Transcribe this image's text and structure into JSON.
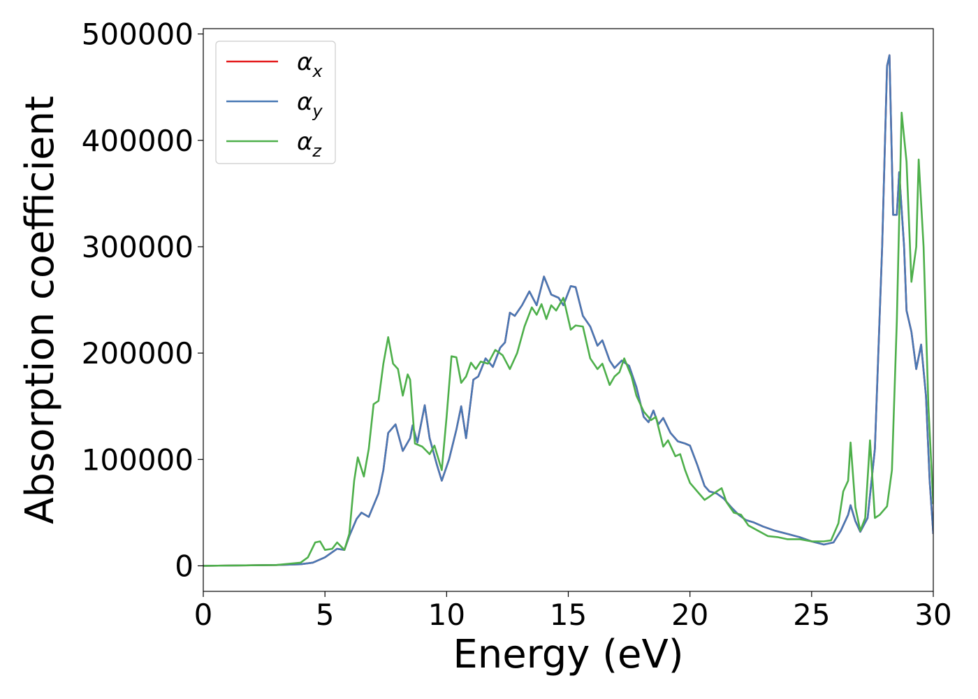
{
  "chart_data": {
    "type": "line",
    "title": "",
    "xlabel": "Energy (eV)",
    "ylabel": "Absorption coefficient",
    "xlim": [
      0,
      30
    ],
    "ylim": [
      -24000,
      505000
    ],
    "xticks": [
      0,
      5,
      10,
      15,
      20,
      25,
      30
    ],
    "yticks": [
      0,
      100000,
      200000,
      300000,
      400000,
      500000
    ],
    "grid": false,
    "legend_position": "top-left",
    "series": [
      {
        "name": "αx",
        "symbol": "α",
        "subscript": "x",
        "color": "#e41a1c",
        "points": [
          [
            0,
            0
          ],
          [
            3,
            800
          ],
          [
            4,
            1500
          ],
          [
            4.5,
            3000
          ],
          [
            5,
            8000
          ],
          [
            5.5,
            16000
          ],
          [
            5.8,
            15000
          ],
          [
            6,
            28000
          ],
          [
            6.3,
            44000
          ],
          [
            6.5,
            50000
          ],
          [
            6.8,
            46000
          ],
          [
            7.2,
            68000
          ],
          [
            7.4,
            90000
          ],
          [
            7.6,
            125000
          ],
          [
            7.9,
            133000
          ],
          [
            8.2,
            108000
          ],
          [
            8.5,
            120000
          ],
          [
            8.6,
            132000
          ],
          [
            8.8,
            116000
          ],
          [
            9.1,
            151000
          ],
          [
            9.3,
            120000
          ],
          [
            9.6,
            95000
          ],
          [
            9.8,
            80000
          ],
          [
            10.1,
            100000
          ],
          [
            10.4,
            128000
          ],
          [
            10.6,
            150000
          ],
          [
            10.8,
            120000
          ],
          [
            11.1,
            175000
          ],
          [
            11.3,
            178000
          ],
          [
            11.6,
            195000
          ],
          [
            11.9,
            187000
          ],
          [
            12.2,
            205000
          ],
          [
            12.4,
            210000
          ],
          [
            12.6,
            238000
          ],
          [
            12.8,
            235000
          ],
          [
            13.1,
            245000
          ],
          [
            13.4,
            258000
          ],
          [
            13.7,
            245000
          ],
          [
            14,
            272000
          ],
          [
            14.3,
            255000
          ],
          [
            14.6,
            252000
          ],
          [
            14.8,
            245000
          ],
          [
            15.1,
            263000
          ],
          [
            15.3,
            262000
          ],
          [
            15.6,
            235000
          ],
          [
            15.9,
            225000
          ],
          [
            16.2,
            207000
          ],
          [
            16.4,
            212000
          ],
          [
            16.7,
            193000
          ],
          [
            16.9,
            186000
          ],
          [
            17.2,
            193000
          ],
          [
            17.5,
            188000
          ],
          [
            17.8,
            168000
          ],
          [
            18.1,
            140000
          ],
          [
            18.3,
            135000
          ],
          [
            18.5,
            146000
          ],
          [
            18.7,
            133000
          ],
          [
            18.9,
            139000
          ],
          [
            19.2,
            125000
          ],
          [
            19.5,
            117000
          ],
          [
            19.8,
            115000
          ],
          [
            20,
            113000
          ],
          [
            20.3,
            95000
          ],
          [
            20.6,
            75000
          ],
          [
            20.8,
            70000
          ],
          [
            21.1,
            68000
          ],
          [
            21.4,
            63000
          ],
          [
            21.7,
            55000
          ],
          [
            22,
            48000
          ],
          [
            22.3,
            43000
          ],
          [
            22.6,
            41000
          ],
          [
            23,
            37000
          ],
          [
            23.5,
            33000
          ],
          [
            24,
            30000
          ],
          [
            24.5,
            27000
          ],
          [
            25,
            23000
          ],
          [
            25.5,
            20000
          ],
          [
            25.9,
            22000
          ],
          [
            26.2,
            33000
          ],
          [
            26.5,
            48000
          ],
          [
            26.6,
            57000
          ],
          [
            26.8,
            42000
          ],
          [
            27,
            32000
          ],
          [
            27.3,
            45000
          ],
          [
            27.6,
            110000
          ],
          [
            27.9,
            300000
          ],
          [
            28.1,
            470000
          ],
          [
            28.2,
            480000
          ],
          [
            28.35,
            330000
          ],
          [
            28.5,
            330000
          ],
          [
            28.6,
            370000
          ],
          [
            28.8,
            300000
          ],
          [
            28.9,
            240000
          ],
          [
            29.1,
            220000
          ],
          [
            29.3,
            185000
          ],
          [
            29.5,
            208000
          ],
          [
            29.7,
            160000
          ],
          [
            29.85,
            80000
          ],
          [
            30,
            30000
          ]
        ]
      },
      {
        "name": "αy",
        "symbol": "α",
        "subscript": "y",
        "color": "#4878b4",
        "points": [
          [
            0,
            0
          ],
          [
            3,
            800
          ],
          [
            4,
            1500
          ],
          [
            4.5,
            3000
          ],
          [
            5,
            8000
          ],
          [
            5.5,
            16000
          ],
          [
            5.8,
            15000
          ],
          [
            6,
            28000
          ],
          [
            6.3,
            44000
          ],
          [
            6.5,
            50000
          ],
          [
            6.8,
            46000
          ],
          [
            7.2,
            68000
          ],
          [
            7.4,
            90000
          ],
          [
            7.6,
            125000
          ],
          [
            7.9,
            133000
          ],
          [
            8.2,
            108000
          ],
          [
            8.5,
            120000
          ],
          [
            8.6,
            132000
          ],
          [
            8.8,
            116000
          ],
          [
            9.1,
            151000
          ],
          [
            9.3,
            120000
          ],
          [
            9.6,
            95000
          ],
          [
            9.8,
            80000
          ],
          [
            10.1,
            100000
          ],
          [
            10.4,
            128000
          ],
          [
            10.6,
            150000
          ],
          [
            10.8,
            120000
          ],
          [
            11.1,
            175000
          ],
          [
            11.3,
            178000
          ],
          [
            11.6,
            195000
          ],
          [
            11.9,
            187000
          ],
          [
            12.2,
            205000
          ],
          [
            12.4,
            210000
          ],
          [
            12.6,
            238000
          ],
          [
            12.8,
            235000
          ],
          [
            13.1,
            245000
          ],
          [
            13.4,
            258000
          ],
          [
            13.7,
            245000
          ],
          [
            14,
            272000
          ],
          [
            14.3,
            255000
          ],
          [
            14.6,
            252000
          ],
          [
            14.8,
            245000
          ],
          [
            15.1,
            263000
          ],
          [
            15.3,
            262000
          ],
          [
            15.6,
            235000
          ],
          [
            15.9,
            225000
          ],
          [
            16.2,
            207000
          ],
          [
            16.4,
            212000
          ],
          [
            16.7,
            193000
          ],
          [
            16.9,
            186000
          ],
          [
            17.2,
            193000
          ],
          [
            17.5,
            188000
          ],
          [
            17.8,
            168000
          ],
          [
            18.1,
            140000
          ],
          [
            18.3,
            135000
          ],
          [
            18.5,
            146000
          ],
          [
            18.7,
            133000
          ],
          [
            18.9,
            139000
          ],
          [
            19.2,
            125000
          ],
          [
            19.5,
            117000
          ],
          [
            19.8,
            115000
          ],
          [
            20,
            113000
          ],
          [
            20.3,
            95000
          ],
          [
            20.6,
            75000
          ],
          [
            20.8,
            70000
          ],
          [
            21.1,
            68000
          ],
          [
            21.4,
            63000
          ],
          [
            21.7,
            55000
          ],
          [
            22,
            48000
          ],
          [
            22.3,
            43000
          ],
          [
            22.6,
            41000
          ],
          [
            23,
            37000
          ],
          [
            23.5,
            33000
          ],
          [
            24,
            30000
          ],
          [
            24.5,
            27000
          ],
          [
            25,
            23000
          ],
          [
            25.5,
            20000
          ],
          [
            25.9,
            22000
          ],
          [
            26.2,
            33000
          ],
          [
            26.5,
            48000
          ],
          [
            26.6,
            57000
          ],
          [
            26.8,
            42000
          ],
          [
            27,
            32000
          ],
          [
            27.3,
            45000
          ],
          [
            27.6,
            110000
          ],
          [
            27.9,
            300000
          ],
          [
            28.1,
            470000
          ],
          [
            28.2,
            480000
          ],
          [
            28.35,
            330000
          ],
          [
            28.5,
            330000
          ],
          [
            28.6,
            370000
          ],
          [
            28.8,
            300000
          ],
          [
            28.9,
            240000
          ],
          [
            29.1,
            220000
          ],
          [
            29.3,
            185000
          ],
          [
            29.5,
            208000
          ],
          [
            29.7,
            160000
          ],
          [
            29.85,
            80000
          ],
          [
            30,
            30000
          ]
        ]
      },
      {
        "name": "αz",
        "symbol": "α",
        "subscript": "z",
        "color": "#4daf4a",
        "points": [
          [
            0,
            0
          ],
          [
            3,
            800
          ],
          [
            4,
            3000
          ],
          [
            4.3,
            8000
          ],
          [
            4.6,
            22000
          ],
          [
            4.8,
            23000
          ],
          [
            5,
            15000
          ],
          [
            5.3,
            16000
          ],
          [
            5.5,
            22000
          ],
          [
            5.8,
            15000
          ],
          [
            6,
            30000
          ],
          [
            6.2,
            80000
          ],
          [
            6.35,
            102000
          ],
          [
            6.6,
            84000
          ],
          [
            6.8,
            110000
          ],
          [
            7,
            152000
          ],
          [
            7.2,
            155000
          ],
          [
            7.4,
            190000
          ],
          [
            7.6,
            215000
          ],
          [
            7.8,
            190000
          ],
          [
            8,
            185000
          ],
          [
            8.2,
            160000
          ],
          [
            8.4,
            180000
          ],
          [
            8.5,
            175000
          ],
          [
            8.7,
            115000
          ],
          [
            9,
            112000
          ],
          [
            9.3,
            105000
          ],
          [
            9.5,
            113000
          ],
          [
            9.8,
            90000
          ],
          [
            10,
            140000
          ],
          [
            10.2,
            197000
          ],
          [
            10.4,
            196000
          ],
          [
            10.6,
            172000
          ],
          [
            10.8,
            178000
          ],
          [
            11,
            191000
          ],
          [
            11.2,
            185000
          ],
          [
            11.4,
            192000
          ],
          [
            11.7,
            190000
          ],
          [
            12,
            203000
          ],
          [
            12.3,
            198000
          ],
          [
            12.6,
            185000
          ],
          [
            12.9,
            200000
          ],
          [
            13.2,
            225000
          ],
          [
            13.5,
            243000
          ],
          [
            13.7,
            236000
          ],
          [
            13.9,
            246000
          ],
          [
            14.1,
            232000
          ],
          [
            14.3,
            245000
          ],
          [
            14.5,
            240000
          ],
          [
            14.8,
            252000
          ],
          [
            15.1,
            222000
          ],
          [
            15.3,
            226000
          ],
          [
            15.6,
            225000
          ],
          [
            15.9,
            195000
          ],
          [
            16.2,
            185000
          ],
          [
            16.4,
            190000
          ],
          [
            16.7,
            170000
          ],
          [
            16.9,
            178000
          ],
          [
            17.1,
            182000
          ],
          [
            17.3,
            195000
          ],
          [
            17.6,
            178000
          ],
          [
            17.8,
            160000
          ],
          [
            18.1,
            145000
          ],
          [
            18.4,
            137000
          ],
          [
            18.6,
            140000
          ],
          [
            18.9,
            112000
          ],
          [
            19.1,
            118000
          ],
          [
            19.4,
            103000
          ],
          [
            19.6,
            105000
          ],
          [
            19.8,
            90000
          ],
          [
            20,
            78000
          ],
          [
            20.3,
            70000
          ],
          [
            20.6,
            62000
          ],
          [
            20.8,
            65000
          ],
          [
            21.1,
            70000
          ],
          [
            21.3,
            73000
          ],
          [
            21.5,
            60000
          ],
          [
            21.8,
            50000
          ],
          [
            22.1,
            48000
          ],
          [
            22.4,
            38000
          ],
          [
            22.8,
            33000
          ],
          [
            23.2,
            28000
          ],
          [
            23.6,
            27000
          ],
          [
            24,
            25000
          ],
          [
            24.5,
            25000
          ],
          [
            25,
            23000
          ],
          [
            25.5,
            23000
          ],
          [
            25.8,
            24000
          ],
          [
            26.1,
            40000
          ],
          [
            26.3,
            70000
          ],
          [
            26.5,
            80000
          ],
          [
            26.6,
            116000
          ],
          [
            26.8,
            55000
          ],
          [
            27,
            33000
          ],
          [
            27.2,
            45000
          ],
          [
            27.4,
            118000
          ],
          [
            27.6,
            45000
          ],
          [
            27.8,
            48000
          ],
          [
            28.1,
            56000
          ],
          [
            28.3,
            90000
          ],
          [
            28.5,
            230000
          ],
          [
            28.7,
            426000
          ],
          [
            28.9,
            380000
          ],
          [
            29.1,
            267000
          ],
          [
            29.3,
            300000
          ],
          [
            29.4,
            382000
          ],
          [
            29.6,
            300000
          ],
          [
            29.8,
            150000
          ],
          [
            30,
            58000
          ]
        ]
      }
    ]
  }
}
